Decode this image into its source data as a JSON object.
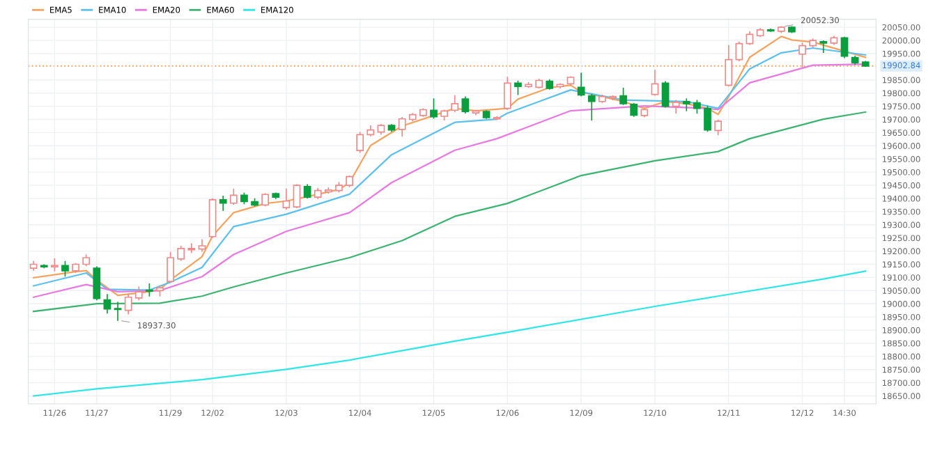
{
  "chart_data": {
    "type": "candlestick",
    "categories": [
      null,
      null,
      "11/26",
      null,
      null,
      null,
      "11/27",
      null,
      null,
      null,
      null,
      null,
      null,
      "11/29",
      null,
      null,
      null,
      "12/02",
      null,
      null,
      null,
      null,
      null,
      null,
      "12/03",
      null,
      null,
      null,
      null,
      null,
      null,
      "12/04",
      null,
      null,
      null,
      null,
      null,
      null,
      "12/05",
      null,
      null,
      null,
      null,
      null,
      null,
      "12/06",
      null,
      null,
      null,
      null,
      null,
      null,
      "12/09",
      null,
      null,
      null,
      null,
      null,
      null,
      "12/10",
      null,
      null,
      null,
      null,
      null,
      null,
      "12/11",
      null,
      null,
      null,
      null,
      null,
      null,
      "12/12",
      null,
      null,
      null,
      "14:30",
      null,
      null
    ],
    "ohlc": [
      [
        19135,
        19160,
        19128,
        19150
      ],
      [
        19145,
        19148,
        19137,
        19140
      ],
      [
        19140,
        19170,
        19125,
        19145
      ],
      [
        19145,
        19160,
        19105,
        19125
      ],
      [
        19125,
        19152,
        19120,
        19150
      ],
      [
        19150,
        19185,
        19145,
        19175
      ],
      [
        19135,
        19140,
        19015,
        19020
      ],
      [
        19015,
        19035,
        18965,
        18980
      ],
      [
        18982,
        19005,
        18937.3,
        18978
      ],
      [
        18975,
        19035,
        18962,
        19025
      ],
      [
        19022,
        19063,
        19015,
        19045
      ],
      [
        19052,
        19075,
        19030,
        19048
      ],
      [
        19050,
        19068,
        19030,
        19060
      ],
      [
        19085,
        19195,
        19082,
        19175
      ],
      [
        19170,
        19218,
        19165,
        19210
      ],
      [
        19205,
        19228,
        19195,
        19210
      ],
      [
        19208,
        19243,
        19200,
        19220
      ],
      [
        19255,
        19398,
        19252,
        19395
      ],
      [
        19395,
        19408,
        19355,
        19382
      ],
      [
        19382,
        19435,
        19378,
        19412
      ],
      [
        19412,
        19420,
        19380,
        19388
      ],
      [
        19388,
        19398,
        19372,
        19375
      ],
      [
        19375,
        19418,
        19372,
        19415
      ],
      [
        19418,
        19420,
        19400,
        19405
      ],
      [
        19365,
        19435,
        19360,
        19390
      ],
      [
        19368,
        19452,
        19365,
        19450
      ],
      [
        19445,
        19452,
        19402,
        19405
      ],
      [
        19405,
        19438,
        19400,
        19430
      ],
      [
        19425,
        19440,
        19420,
        19432
      ],
      [
        19430,
        19460,
        19425,
        19450
      ],
      [
        19450,
        19485,
        19445,
        19483
      ],
      [
        19582,
        19650,
        19575,
        19642
      ],
      [
        19642,
        19675,
        19638,
        19660
      ],
      [
        19652,
        19680,
        19645,
        19677
      ],
      [
        19677,
        19680,
        19655,
        19660
      ],
      [
        19662,
        19707,
        19637,
        19702
      ],
      [
        19700,
        19722,
        19695,
        19718
      ],
      [
        19715,
        19740,
        19712,
        19737
      ],
      [
        19735,
        19778,
        19705,
        19710
      ],
      [
        19712,
        19735,
        19698,
        19732
      ],
      [
        19735,
        19790,
        19730,
        19760
      ],
      [
        19778,
        19785,
        19725,
        19730
      ],
      [
        19725,
        19735,
        19718,
        19732
      ],
      [
        19730,
        19732,
        19704,
        19707
      ],
      [
        19702,
        19710,
        19700,
        19707
      ],
      [
        19742,
        19860,
        19738,
        19838
      ],
      [
        19838,
        19845,
        19795,
        19825
      ],
      [
        19825,
        19840,
        19822,
        19833
      ],
      [
        19822,
        19852,
        19820,
        19848
      ],
      [
        19845,
        19850,
        19815,
        19818
      ],
      [
        19825,
        19835,
        19820,
        19833
      ],
      [
        19835,
        19862,
        19832,
        19860
      ],
      [
        19822,
        19875,
        19790,
        19793
      ],
      [
        19790,
        19795,
        19698,
        19768
      ],
      [
        19768,
        19792,
        19765,
        19787
      ],
      [
        19782,
        19790,
        19775,
        19787
      ],
      [
        19790,
        19818,
        19757,
        19760
      ],
      [
        19757,
        19760,
        19712,
        19716
      ],
      [
        19715,
        19740,
        19710,
        19737
      ],
      [
        19795,
        19886,
        19792,
        19835
      ],
      [
        19838,
        19843,
        19747,
        19750
      ],
      [
        19750,
        19772,
        19725,
        19765
      ],
      [
        19768,
        19778,
        19733,
        19760
      ],
      [
        19763,
        19772,
        19725,
        19742
      ],
      [
        19742,
        19750,
        19655,
        19660
      ],
      [
        19658,
        19697,
        19642,
        19693
      ],
      [
        19830,
        19980,
        19827,
        19927
      ],
      [
        19927,
        19993,
        19923,
        19988
      ],
      [
        19988,
        20032,
        19985,
        20023
      ],
      [
        20018,
        20045,
        20015,
        20040
      ],
      [
        20040,
        20043,
        20035,
        20036
      ],
      [
        20035,
        20052.3,
        20030,
        20050
      ],
      [
        20050,
        20052,
        20030,
        20033
      ],
      [
        19948,
        19990,
        19900,
        19980
      ],
      [
        19980,
        20005,
        19975,
        20000
      ],
      [
        19995,
        19998,
        19955,
        19990
      ],
      [
        19990,
        20015,
        19985,
        20010
      ],
      [
        20010,
        20012,
        19935,
        19940
      ],
      [
        19935,
        19940,
        19910,
        19915
      ],
      [
        19918,
        19920,
        19902,
        19902.84
      ]
    ],
    "colors": [
      "#f08a8a",
      "#0a9e3e",
      "#f08a8a",
      "#0a9e3e",
      "#f08a8a",
      "#f08a8a",
      "#0a9e3e",
      "#0a9e3e",
      "#0a9e3e",
      "#f08a8a",
      "#f08a8a",
      "#0a9e3e",
      "#f08a8a",
      "#f08a8a",
      "#f08a8a",
      "#f08a8a",
      "#f08a8a",
      "#f08a8a",
      "#0a9e3e",
      "#f08a8a",
      "#0a9e3e",
      "#0a9e3e",
      "#f08a8a",
      "#0a9e3e",
      "#f08a8a",
      "#f08a8a",
      "#0a9e3e",
      "#f08a8a",
      "#f08a8a",
      "#f08a8a",
      "#f08a8a",
      "#f08a8a",
      "#f08a8a",
      "#f08a8a",
      "#0a9e3e",
      "#f08a8a",
      "#f08a8a",
      "#f08a8a",
      "#0a9e3e",
      "#f08a8a",
      "#f08a8a",
      "#0a9e3e",
      "#f08a8a",
      "#0a9e3e",
      "#f08a8a",
      "#f08a8a",
      "#0a9e3e",
      "#f08a8a",
      "#f08a8a",
      "#0a9e3e",
      "#f08a8a",
      "#f08a8a",
      "#0a9e3e",
      "#0a9e3e",
      "#f08a8a",
      "#f08a8a",
      "#0a9e3e",
      "#0a9e3e",
      "#f08a8a",
      "#f08a8a",
      "#0a9e3e",
      "#f08a8a",
      "#0a9e3e",
      "#0a9e3e",
      "#0a9e3e",
      "#f08a8a",
      "#f08a8a",
      "#f08a8a",
      "#f08a8a",
      "#f08a8a",
      "#0a9e3e",
      "#f08a8a",
      "#0a9e3e",
      "#f08a8a",
      "#f08a8a",
      "#0a9e3e",
      "#f08a8a",
      "#0a9e3e",
      "#0a9e3e",
      "#0a9e3e"
    ],
    "series": [
      {
        "type": "line",
        "name": "EMA5",
        "color": "#f5a25d",
        "values": [
          19099,
          null,
          null,
          null,
          19122,
          19126,
          19090,
          null,
          19032,
          null,
          null,
          19046,
          19055,
          19090,
          null,
          null,
          19179,
          19258,
          null,
          19346,
          null,
          null,
          19381,
          null,
          19390,
          null,
          19407,
          null,
          null,
          19434,
          19460,
          null,
          19601,
          null,
          null,
          19675,
          null,
          null,
          19715,
          null,
          19742,
          null,
          19733,
          null,
          null,
          19742,
          19777,
          null,
          null,
          19821,
          null,
          19830,
          19804,
          null,
          19786,
          null,
          19768,
          null,
          19742,
          null,
          19768,
          null,
          19760,
          null,
          19742,
          19719,
          19786,
          null,
          19936,
          null,
          null,
          20015,
          20002,
          null,
          19994,
          null,
          null,
          null,
          null,
          19936
        ]
      },
      {
        "type": "line",
        "name": "EMA10",
        "color": "#5bc0eb",
        "values": [
          19068,
          null,
          null,
          null,
          null,
          19117,
          null,
          19055,
          null,
          null,
          null,
          19052,
          null,
          19082,
          null,
          null,
          19138,
          null,
          null,
          19293,
          null,
          null,
          null,
          null,
          19340,
          null,
          null,
          null,
          null,
          null,
          19416,
          null,
          null,
          null,
          19566,
          null,
          null,
          null,
          null,
          null,
          19689,
          null,
          null,
          null,
          19701,
          19724,
          null,
          null,
          null,
          null,
          null,
          19812,
          null,
          null,
          null,
          null,
          19774,
          null,
          null,
          null,
          null,
          null,
          19768,
          null,
          null,
          19742,
          null,
          null,
          19892,
          null,
          null,
          19953,
          null,
          null,
          19971,
          null,
          null,
          null,
          null,
          19945
        ]
      },
      {
        "type": "line",
        "name": "EMA20",
        "color": "#e879e0",
        "values": [
          19025,
          null,
          null,
          null,
          null,
          19073,
          null,
          null,
          19046,
          null,
          null,
          null,
          19050,
          null,
          null,
          null,
          19103,
          null,
          null,
          19187,
          null,
          null,
          null,
          null,
          19275,
          null,
          null,
          null,
          null,
          null,
          19346,
          null,
          null,
          null,
          19460,
          null,
          null,
          null,
          null,
          null,
          19583,
          null,
          null,
          null,
          19627,
          null,
          null,
          null,
          null,
          null,
          null,
          19733,
          null,
          null,
          null,
          null,
          null,
          null,
          19751,
          null,
          null,
          null,
          null,
          null,
          19742,
          19737,
          null,
          null,
          19839,
          null,
          null,
          null,
          null,
          null,
          19906,
          null,
          null,
          null,
          null,
          19910
        ]
      },
      {
        "type": "line",
        "name": "EMA60",
        "color": "#3cb371",
        "values": [
          18971,
          null,
          null,
          null,
          null,
          null,
          19000,
          null,
          null,
          null,
          null,
          null,
          19002,
          null,
          null,
          null,
          19029,
          null,
          null,
          19064,
          null,
          null,
          null,
          null,
          19117,
          null,
          null,
          null,
          null,
          null,
          19175,
          null,
          null,
          null,
          null,
          19240,
          null,
          null,
          null,
          null,
          19332,
          null,
          null,
          null,
          null,
          19381,
          null,
          null,
          null,
          null,
          null,
          null,
          19487,
          null,
          null,
          null,
          null,
          null,
          null,
          19543,
          null,
          null,
          null,
          null,
          null,
          19578,
          null,
          null,
          19627,
          null,
          null,
          null,
          null,
          null,
          null,
          19701,
          null,
          null,
          null,
          19728
        ]
      },
      {
        "type": "line",
        "name": "EMA120",
        "color": "#2ee6e6",
        "values": [
          18650,
          null,
          null,
          null,
          null,
          null,
          18677,
          null,
          null,
          null,
          null,
          null,
          null,
          null,
          null,
          null,
          18712,
          null,
          null,
          null,
          null,
          null,
          null,
          null,
          18751,
          null,
          null,
          null,
          null,
          null,
          18786,
          null,
          null,
          null,
          null,
          null,
          null,
          null,
          null,
          null,
          18858,
          null,
          null,
          null,
          null,
          18892,
          null,
          null,
          null,
          null,
          null,
          null,
          null,
          null,
          null,
          null,
          null,
          null,
          null,
          18990,
          null,
          null,
          null,
          null,
          null,
          19029,
          null,
          null,
          null,
          null,
          null,
          null,
          null,
          null,
          null,
          19094,
          null,
          null,
          null,
          19124
        ]
      }
    ],
    "ylim": [
      18620,
      20080
    ],
    "yticks": [
      {
        "value": 18650,
        "label": "18650.00"
      },
      {
        "value": 18700,
        "label": "18700.00"
      },
      {
        "value": 18750,
        "label": "18750.00"
      },
      {
        "value": 18800,
        "label": "18800.00"
      },
      {
        "value": 18850,
        "label": "18850.00"
      },
      {
        "value": 18900,
        "label": "18900.00"
      },
      {
        "value": 18950,
        "label": "18950.00"
      },
      {
        "value": 19000,
        "label": "19000.00"
      },
      {
        "value": 19050,
        "label": "19050.00"
      },
      {
        "value": 19100,
        "label": "19100.00"
      },
      {
        "value": 19150,
        "label": "19150.00"
      },
      {
        "value": 19200,
        "label": "19200.00"
      },
      {
        "value": 19250,
        "label": "19250.00"
      },
      {
        "value": 19300,
        "label": "19300.00"
      },
      {
        "value": 19350,
        "label": "19350.00"
      },
      {
        "value": 19400,
        "label": "19400.00"
      },
      {
        "value": 19450,
        "label": "19450.00"
      },
      {
        "value": 19500,
        "label": "19500.00"
      },
      {
        "value": 19550,
        "label": "19550.00"
      },
      {
        "value": 19600,
        "label": "19600.00"
      },
      {
        "value": 19650,
        "label": "19650.00"
      },
      {
        "value": 19700,
        "label": "19700.00"
      },
      {
        "value": 19750,
        "label": "19750.00"
      },
      {
        "value": 19800,
        "label": "19800.00"
      },
      {
        "value": 19850,
        "label": "19850.00"
      },
      {
        "value": 19950,
        "label": "19950.00"
      },
      {
        "value": 20000,
        "label": "20000.00"
      },
      {
        "value": 20050,
        "label": "20050.00"
      }
    ],
    "ref_lines": [
      {
        "axis": "y",
        "value": 19902.84,
        "label": "19902.84",
        "color": "#f5a25d",
        "line_style": "dotted"
      }
    ],
    "annotations": [
      "18937.30",
      "20052.30"
    ],
    "grid": true,
    "legend": "top left"
  }
}
